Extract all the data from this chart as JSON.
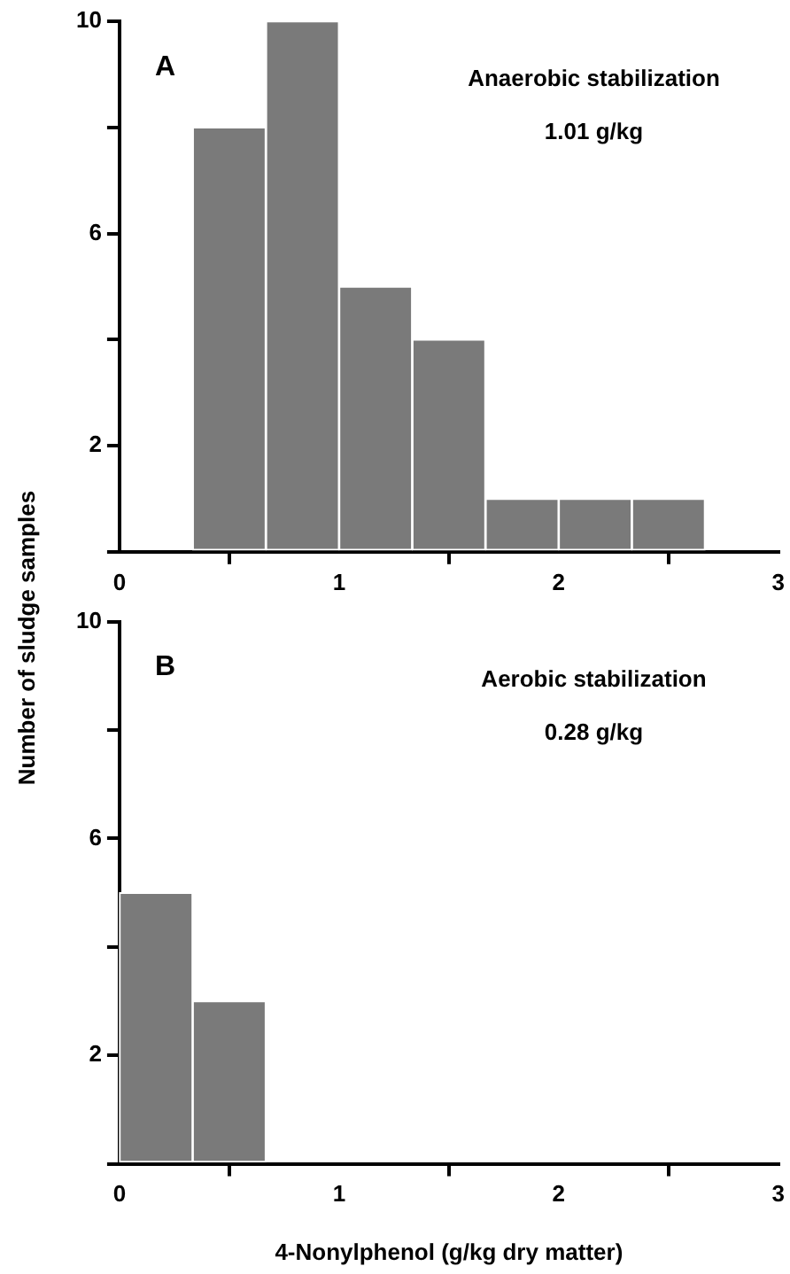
{
  "chart_data": [
    {
      "type": "histogram",
      "ylabel": "Number of sludge samples",
      "bins": [
        0.333,
        0.667,
        1,
        1.333,
        1.667,
        2,
        2.333,
        2.667
      ],
      "values": [
        8,
        10,
        5,
        4,
        1,
        1,
        1
      ],
      "color": "#7a7a7a",
      "xlim": [
        0,
        3
      ],
      "xticks": [
        0,
        1,
        2,
        3
      ],
      "ylim": [
        0,
        10
      ],
      "yticks": [
        {
          "value": 0,
          "label": null
        },
        2,
        {
          "value": 4,
          "label": null
        },
        6,
        {
          "value": 8,
          "label": null
        },
        10
      ],
      "grid": false,
      "legend": false,
      "annotations": [
        "A",
        "Anaerobic stabilization",
        "1.01 g/kg"
      ]
    },
    {
      "type": "histogram",
      "xlabel": "4-Nonylphenol (g/kg dry matter)",
      "bins": [
        0,
        0.333,
        0.667
      ],
      "values": [
        5,
        3
      ],
      "color": "#7a7a7a",
      "xlim": [
        0,
        3
      ],
      "xticks": [
        0,
        1,
        2,
        3
      ],
      "ylim": [
        0,
        10
      ],
      "yticks": [
        {
          "value": 0,
          "label": null
        },
        2,
        {
          "value": 4,
          "label": null
        },
        6,
        {
          "value": 8,
          "label": null
        },
        10
      ],
      "grid": false,
      "legend": false,
      "annotations": [
        "B",
        "Aerobic stabilization",
        "0.28 g/kg"
      ]
    }
  ]
}
